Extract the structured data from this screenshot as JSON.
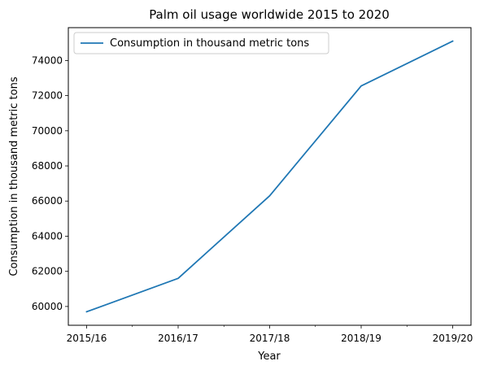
{
  "chart_data": {
    "type": "line",
    "title": "Palm oil usage worldwide 2015 to 2020",
    "xlabel": "Year",
    "ylabel": "Consumption in thousand metric tons",
    "categories": [
      "2015/16",
      "2016/17",
      "2017/18",
      "2018/19",
      "2019/20"
    ],
    "series": [
      {
        "name": "Consumption in thousand metric tons",
        "color": "#1f77b4",
        "values": [
          59700,
          61600,
          66300,
          72550,
          75100
        ]
      }
    ],
    "yticks": [
      60000,
      62000,
      64000,
      66000,
      68000,
      70000,
      72000,
      74000
    ],
    "ylim": [
      58930,
      75870
    ],
    "grid": false,
    "legend_position": "top-left"
  }
}
